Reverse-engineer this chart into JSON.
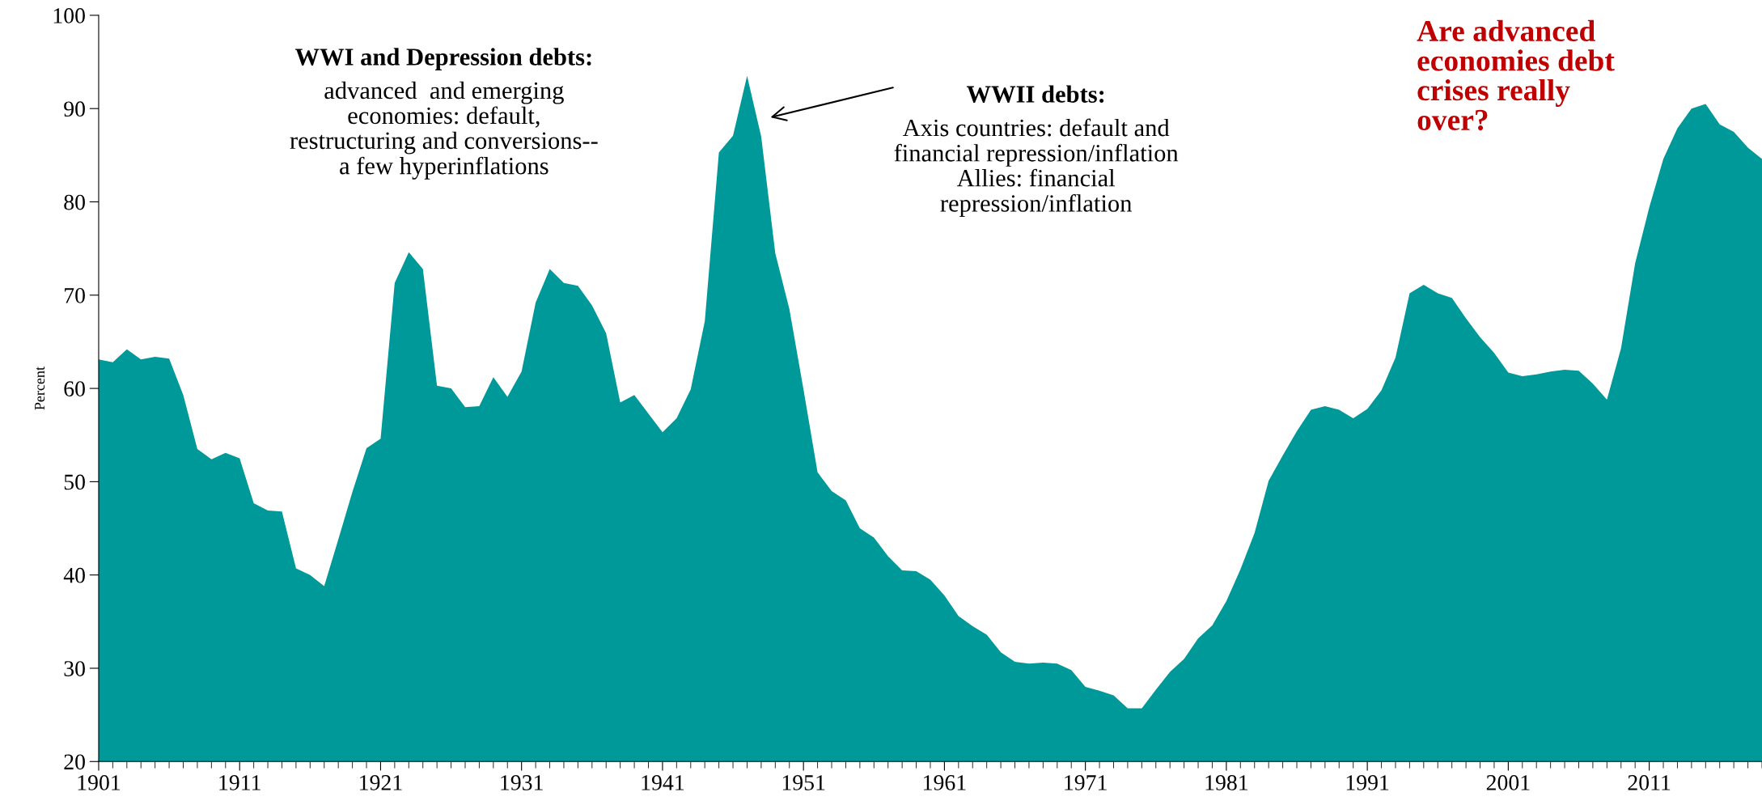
{
  "chart_data": {
    "type": "area",
    "ylabel": "Percent",
    "x": [
      1901,
      1902,
      1903,
      1904,
      1905,
      1906,
      1907,
      1908,
      1909,
      1910,
      1911,
      1912,
      1913,
      1914,
      1915,
      1916,
      1917,
      1918,
      1919,
      1920,
      1921,
      1922,
      1923,
      1924,
      1925,
      1926,
      1927,
      1928,
      1929,
      1930,
      1931,
      1932,
      1933,
      1934,
      1935,
      1936,
      1937,
      1938,
      1939,
      1940,
      1941,
      1942,
      1943,
      1944,
      1945,
      1946,
      1947,
      1948,
      1949,
      1950,
      1951,
      1952,
      1953,
      1954,
      1955,
      1956,
      1957,
      1958,
      1959,
      1960,
      1961,
      1962,
      1963,
      1964,
      1965,
      1966,
      1967,
      1968,
      1969,
      1970,
      1971,
      1972,
      1973,
      1974,
      1975,
      1976,
      1977,
      1978,
      1979,
      1980,
      1981,
      1982,
      1983,
      1984,
      1985,
      1986,
      1987,
      1988,
      1989,
      1990,
      1991,
      1992,
      1993,
      1994,
      1995,
      1996,
      1997,
      1998,
      1999,
      2000,
      2001,
      2002,
      2003,
      2004,
      2005,
      2006,
      2007,
      2008,
      2009,
      2010,
      2011,
      2012,
      2013,
      2014,
      2015,
      2016,
      2017,
      2018,
      2019
    ],
    "series": [
      {
        "color": "#009999",
        "values": [
          63.1,
          62.8,
          64.2,
          63.1,
          63.4,
          63.2,
          59.3,
          53.5,
          52.4,
          53.1,
          52.5,
          47.7,
          46.9,
          46.8,
          40.7,
          40.0,
          38.8,
          43.8,
          48.9,
          53.6,
          54.6,
          71.3,
          74.6,
          72.8,
          60.3,
          60.0,
          58.0,
          58.1,
          61.2,
          59.1,
          61.8,
          69.2,
          72.8,
          71.3,
          71.0,
          68.9,
          65.9,
          58.5,
          59.3,
          57.3,
          55.3,
          56.8,
          59.9,
          67.2,
          85.3,
          87.1,
          93.5,
          87.0,
          74.5,
          68.5,
          59.9,
          51.0,
          49.0,
          48.0,
          45.0,
          44.0,
          42.0,
          40.5,
          40.4,
          39.5,
          37.8,
          35.6,
          34.5,
          33.6,
          31.7,
          30.7,
          30.5,
          30.6,
          30.5,
          29.8,
          28.0,
          27.6,
          27.1,
          25.7,
          25.7,
          27.7,
          29.6,
          31.0,
          33.2,
          34.6,
          37.2,
          40.6,
          44.5,
          50.1,
          52.8,
          55.4,
          57.7,
          58.1,
          57.7,
          56.8,
          57.8,
          59.8,
          63.3,
          70.2,
          71.1,
          70.2,
          69.7,
          67.5,
          65.5,
          63.8,
          61.7,
          61.3,
          61.5,
          61.8,
          62.0,
          61.9,
          60.5,
          58.8,
          64.3,
          73.4,
          79.4,
          84.6,
          87.9,
          90.0,
          90.5,
          88.3,
          87.5,
          85.8,
          84.6
        ]
      }
    ],
    "xlim": [
      1901,
      2019
    ],
    "xticks": [
      1901,
      1911,
      1921,
      1931,
      1941,
      1951,
      1961,
      1971,
      1981,
      1991,
      2001,
      2011
    ],
    "ylim": [
      20,
      100
    ],
    "yticks": [
      20,
      30,
      40,
      50,
      60,
      70,
      80,
      90,
      100
    ],
    "grid": false,
    "legend": false,
    "annotations": [
      "WWI and Depression debts:\nadvanced  and emerging\neconomies: default,\nrestructuring and conversions--\na few hyperinflations",
      "WWII debts:\nAxis countries: default and\nfinancial repression/inflation\nAllies: financial\nrepression/inflation",
      "Are advanced\neconomies debt\ncrises really\nover?"
    ]
  }
}
